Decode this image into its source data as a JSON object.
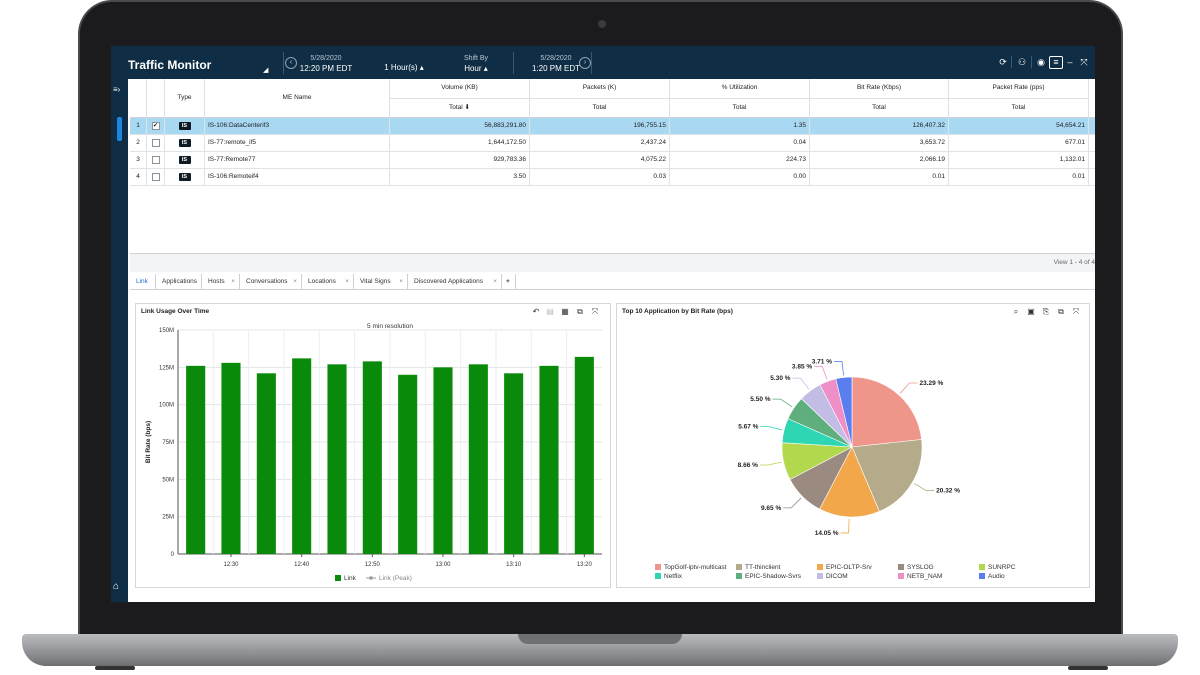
{
  "app": {
    "title": "Traffic Monitor",
    "start_date": "5/28/2020",
    "start_time": "12:20 PM EDT",
    "range_label": "1 Hour(s)",
    "shift_label": "Shift By",
    "shift_value": "Hour",
    "end_date": "5/28/2020",
    "end_time": "1:20 PM EDT",
    "nav_prev_icon": "chevron-left",
    "nav_next_icon": "chevron-right"
  },
  "grid": {
    "columns": {
      "type": "Type",
      "me_name": "ME Name",
      "volume": "Volume (KB)",
      "packets": "Packets (K)",
      "util": "% Utilization",
      "bitrate": "Bit Rate (Kbps)",
      "pktrate": "Packet Rate (pps)",
      "total": "Total",
      "total_sorted": "Total ⬇"
    },
    "rows": [
      {
        "idx": "1",
        "checked": "✔",
        "type": "IS",
        "name": "IS-106:DataCenterif3",
        "volume": "56,883,291.80",
        "packets": "196,755.15",
        "util": "1.35",
        "bitrate": "126,407.32",
        "pktrate": "54,654.21"
      },
      {
        "idx": "2",
        "checked": "",
        "type": "IS",
        "name": "IS-77:remote_if5",
        "volume": "1,644,172.50",
        "packets": "2,437.24",
        "util": "0.04",
        "bitrate": "3,653.72",
        "pktrate": "677.01"
      },
      {
        "idx": "3",
        "checked": "",
        "type": "IS",
        "name": "IS-77:Remote77",
        "volume": "929,783.36",
        "packets": "4,075.22",
        "util": "224.73",
        "bitrate": "2,066.19",
        "pktrate": "1,132.01"
      },
      {
        "idx": "4",
        "checked": "",
        "type": "IS",
        "name": "IS-106:Remoteif4",
        "volume": "3.50",
        "packets": "0.03",
        "util": "0.00",
        "bitrate": "0.01",
        "pktrate": "0.01"
      }
    ],
    "view_count": "View 1 - 4 of 4"
  },
  "tabs": [
    {
      "label": "Link",
      "closable": false
    },
    {
      "label": "Applications",
      "closable": false
    },
    {
      "label": "Hosts",
      "closable": true
    },
    {
      "label": "Conversations",
      "closable": true
    },
    {
      "label": "Locations",
      "closable": true
    },
    {
      "label": "Vital Signs",
      "closable": true
    },
    {
      "label": "Discovered Applications",
      "closable": true
    }
  ],
  "tab_add_label": "+",
  "tab_close_label": "×",
  "chart_data": [
    {
      "type": "bar",
      "title": "Link Usage Over Time",
      "subtitle": "5 min resolution",
      "ylabel": "Bit Rate (bps)",
      "xlabel": "",
      "yticks": [
        "0",
        "25M",
        "50M",
        "75M",
        "100M",
        "125M",
        "150M"
      ],
      "ylim": [
        0,
        150
      ],
      "x_tick_labels": [
        "12:30",
        "12:40",
        "12:50",
        "13:00",
        "13:10",
        "13:20"
      ],
      "series": [
        {
          "name": "Link",
          "color": "#0a8a0a",
          "values": [
            126,
            128,
            121,
            131,
            127,
            129,
            120,
            125,
            127,
            121,
            126,
            132
          ]
        },
        {
          "name": "Link (Peak)",
          "color": "#9a9a9a",
          "values": []
        }
      ],
      "legend_position": "bottom"
    },
    {
      "type": "pie",
      "title": "Top 10 Application by Bit Rate (bps)",
      "slices": [
        {
          "label": "TopGolf-iptv-multicast",
          "value": 23.29,
          "text": "23.29 %",
          "color": "#f0958a"
        },
        {
          "label": "TT-thinclient",
          "value": 20.32,
          "text": "20.32 %",
          "color": "#b5ab8a"
        },
        {
          "label": "EPIC-OLTP-Srv",
          "value": 14.05,
          "text": "14.05 %",
          "color": "#f2a84a"
        },
        {
          "label": "SYSLOG",
          "value": 9.65,
          "text": "9.65 %",
          "color": "#9a8a80"
        },
        {
          "label": "SUNRPC",
          "value": 8.66,
          "text": "8.66 %",
          "color": "#b2d84e"
        },
        {
          "label": "Netflix",
          "value": 5.67,
          "text": "5.67 %",
          "color": "#2fd6b4"
        },
        {
          "label": "EPIC-Shadow-Svrs",
          "value": 5.5,
          "text": "5.50 %",
          "color": "#5fae7e"
        },
        {
          "label": "DICOM",
          "value": 5.3,
          "text": "5.30 %",
          "color": "#c3bde6"
        },
        {
          "label": "NETB_NAM",
          "value": 3.85,
          "text": "3.85 %",
          "color": "#ee8fc8"
        },
        {
          "label": "Audio",
          "value": 3.71,
          "text": "3.71 %",
          "color": "#5a7ef0"
        }
      ],
      "legend_position": "bottom"
    }
  ]
}
